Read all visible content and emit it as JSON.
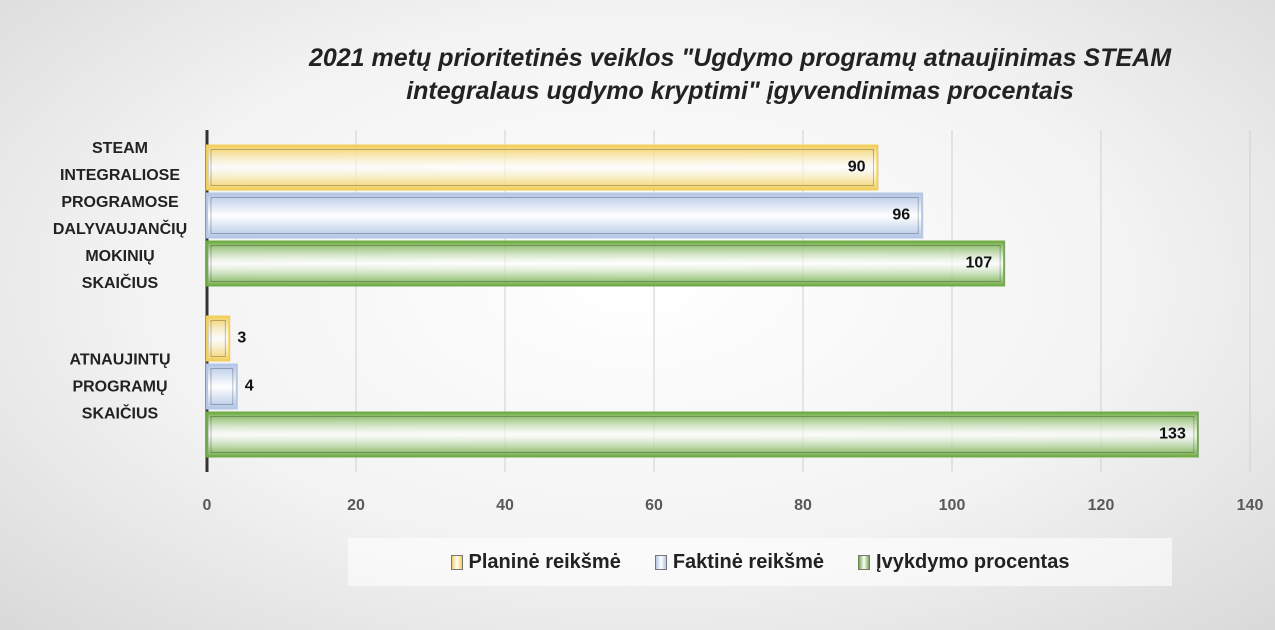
{
  "chart_data": {
    "type": "bar",
    "orientation": "horizontal",
    "title": "2021 metų prioritetinės veiklos \"Ugdymo programų atnaujinimas STEAM integralaus ugdymo kryptimi\" įgyvendinimas procentais",
    "categories": [
      "STEAM INTEGRALIOSE PROGRAMOSE DALYVAUJANČIŲ MOKINIŲ SKAIČIUS",
      "ATNAUJINTŲ PROGRAMŲ SKAIČIUS"
    ],
    "series": [
      {
        "name": "Planinė reikšmė",
        "color": "#f2cf5b",
        "values": [
          90,
          3
        ]
      },
      {
        "name": "Faktinė reikšmė",
        "color": "#b4c7e7",
        "values": [
          96,
          4
        ]
      },
      {
        "name": "Įvykdymo procentas",
        "color": "#70ad47",
        "values": [
          107,
          133
        ]
      }
    ],
    "xlim": [
      0,
      140
    ],
    "xticks": [
      0,
      20,
      40,
      60,
      80,
      100,
      120,
      140
    ],
    "grid": true,
    "legend": "bottom"
  }
}
